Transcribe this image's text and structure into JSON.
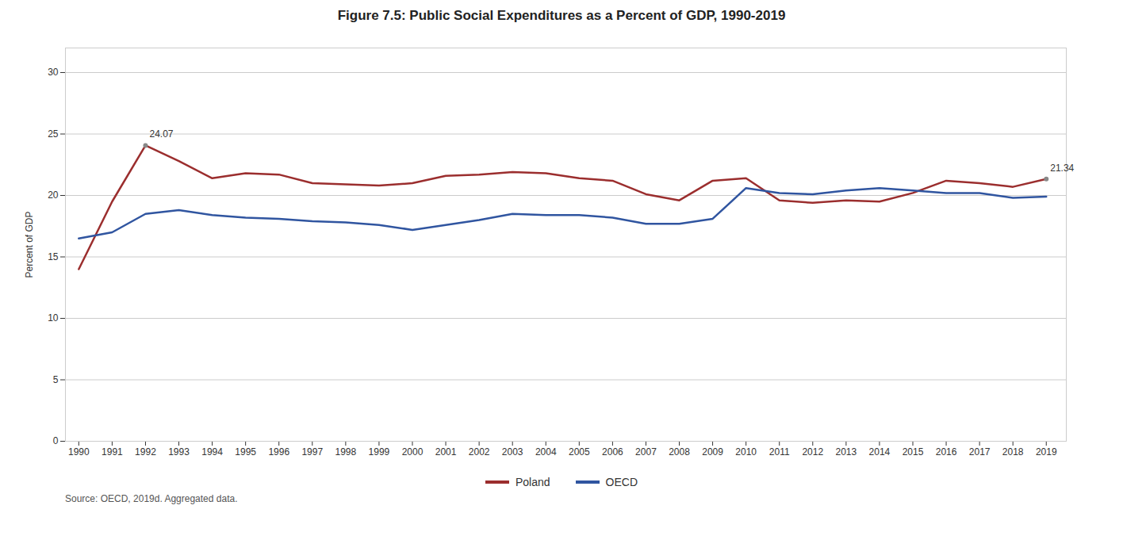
{
  "chart_data": {
    "type": "line",
    "title": "Figure 7.5: Public Social Expenditures as a Percent of GDP, 1990-2019",
    "ylabel": "Percent of GDP",
    "source": "Source: OECD, 2019d. Aggregated data.",
    "x": [
      1990,
      1991,
      1992,
      1993,
      1994,
      1995,
      1996,
      1997,
      1998,
      1999,
      2000,
      2001,
      2002,
      2003,
      2004,
      2005,
      2006,
      2007,
      2008,
      2009,
      2010,
      2011,
      2012,
      2013,
      2014,
      2015,
      2016,
      2017,
      2018,
      2019
    ],
    "series": [
      {
        "name": "Poland",
        "color": "#9B2E2E",
        "values": [
          14.0,
          19.5,
          24.07,
          22.8,
          21.4,
          21.8,
          21.7,
          21.0,
          20.9,
          20.8,
          21.0,
          21.6,
          21.7,
          21.9,
          21.8,
          21.4,
          21.2,
          20.1,
          19.6,
          21.2,
          21.4,
          19.6,
          19.4,
          19.6,
          19.5,
          20.2,
          21.2,
          21.0,
          20.7,
          21.34
        ]
      },
      {
        "name": "OECD",
        "color": "#3055A0",
        "values": [
          16.5,
          17.0,
          18.5,
          18.8,
          18.4,
          18.2,
          18.1,
          17.9,
          17.8,
          17.6,
          17.2,
          17.6,
          18.0,
          18.5,
          18.4,
          18.4,
          18.2,
          17.7,
          17.7,
          18.1,
          20.6,
          20.2,
          20.1,
          20.4,
          20.6,
          20.4,
          20.2,
          20.2,
          19.8,
          19.9
        ]
      }
    ],
    "xlim": [
      1989.6,
      2019.6
    ],
    "xticks": [
      1990,
      1991,
      1992,
      1993,
      1994,
      1995,
      1996,
      1997,
      1998,
      1999,
      2000,
      2001,
      2002,
      2003,
      2004,
      2005,
      2006,
      2007,
      2008,
      2009,
      2010,
      2011,
      2012,
      2013,
      2014,
      2015,
      2016,
      2017,
      2018,
      2019
    ],
    "ylim": [
      0,
      32
    ],
    "yticks": [
      0,
      5,
      10,
      15,
      20,
      25,
      30
    ],
    "grid": true,
    "legend": "bottom",
    "annotations": [
      {
        "text": "24.07",
        "x": 1992,
        "y": 24.07
      },
      {
        "text": "21.34",
        "x": 2019,
        "y": 21.34
      }
    ]
  }
}
